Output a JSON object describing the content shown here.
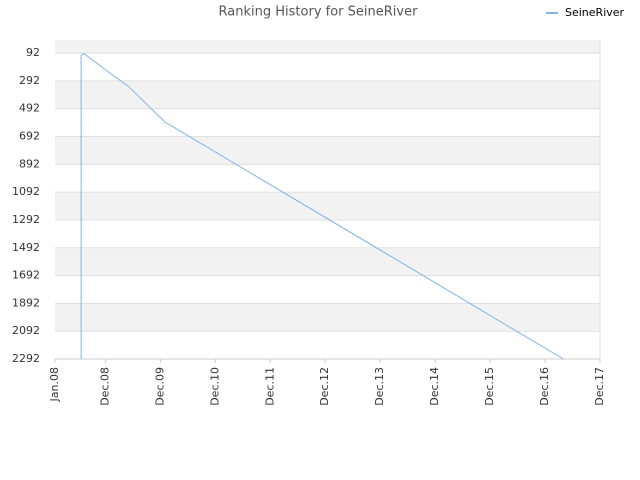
{
  "chart_data": {
    "type": "line",
    "title": "Ranking History for SeineRiver",
    "x": [
      5.7,
      5.7,
      6.0,
      6.3,
      12,
      16,
      24,
      111
    ],
    "series": [
      {
        "name": "SeineRiver",
        "color": "#7cb5ec",
        "values": [
          2292,
          110,
          100,
          95,
          236,
          330,
          588,
          2292
        ]
      }
    ],
    "xlim": [
      0,
      119
    ],
    "xticks": [
      {
        "value": 0,
        "label": "Jan.08"
      },
      {
        "value": 11,
        "label": "Dec.08"
      },
      {
        "value": 23,
        "label": "Dec.09"
      },
      {
        "value": 35,
        "label": "Dec.10"
      },
      {
        "value": 47,
        "label": "Dec.11"
      },
      {
        "value": 59,
        "label": "Dec.12"
      },
      {
        "value": 71,
        "label": "Dec.13"
      },
      {
        "value": 83,
        "label": "Dec.14"
      },
      {
        "value": 95,
        "label": "Dec.15"
      },
      {
        "value": 107,
        "label": "Dec.16"
      },
      {
        "value": 119,
        "label": "Dec.17"
      }
    ],
    "ylim": [
      2292,
      -2
    ],
    "yticks": [
      92,
      292,
      492,
      692,
      892,
      1092,
      1292,
      1492,
      1692,
      1892,
      2092,
      2292
    ],
    "grid": true,
    "legend": "top-right"
  }
}
